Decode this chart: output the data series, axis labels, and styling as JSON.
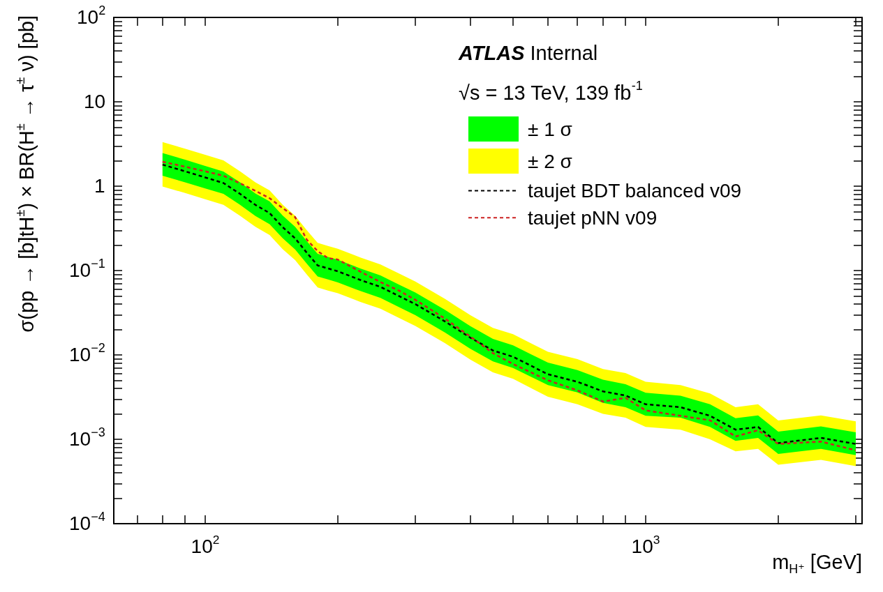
{
  "chart_data": {
    "type": "line",
    "xlabel": "m$_{H⁺}$ [GeV]",
    "ylabel": "σ(pp → [b]tH$^{±}$) × BR(H$^{±}$ → τ$^{±}$ ν) [pb]",
    "annotations": [
      "ATLAS Internal",
      "√s = 13 TeV, 139 fb$^{-1}$"
    ],
    "x": [
      80,
      90,
      100,
      110,
      120,
      130,
      140,
      150,
      160,
      170,
      180,
      190,
      200,
      225,
      250,
      275,
      300,
      350,
      400,
      450,
      500,
      600,
      700,
      800,
      900,
      1000,
      1200,
      1400,
      1600,
      1800,
      2000,
      2500,
      3000
    ],
    "series": [
      {
        "name": "± 2 σ",
        "type": "area",
        "color": "#ffff00",
        "values": [
          null,
          null,
          null,
          null,
          null,
          null,
          null,
          null,
          null,
          null,
          null,
          null,
          null,
          null,
          null,
          null,
          null,
          null,
          null,
          null,
          null,
          null,
          null,
          null,
          null,
          null,
          null,
          null,
          null,
          null,
          null,
          null,
          null
        ],
        "lower": [
          0.99,
          0.83,
          0.7,
          0.6,
          0.446,
          0.33,
          0.264,
          0.179,
          0.133,
          0.09,
          0.063,
          0.058,
          0.054,
          0.0425,
          0.0352,
          0.0275,
          0.022,
          0.0138,
          0.0088,
          0.0062,
          0.0052,
          0.0032,
          0.0026,
          0.002,
          0.0018,
          0.0014,
          0.0013,
          0.001,
          0.00072,
          0.00077,
          0.0005,
          0.00057,
          0.00048
        ],
        "upper": [
          3.33,
          2.78,
          2.35,
          2.02,
          1.5,
          1.11,
          0.89,
          0.6,
          0.446,
          0.302,
          0.213,
          0.196,
          0.181,
          0.143,
          0.118,
          0.0925,
          0.074,
          0.0463,
          0.0296,
          0.0209,
          0.0176,
          0.0109,
          0.0089,
          0.0068,
          0.0061,
          0.0048,
          0.0044,
          0.0035,
          0.0024,
          0.0026,
          0.00167,
          0.00192,
          0.00163
        ]
      },
      {
        "name": "± 1 σ",
        "type": "area",
        "color": "#00ff00",
        "values": [
          null,
          null,
          null,
          null,
          null,
          null,
          null,
          null,
          null,
          null,
          null,
          null,
          null,
          null,
          null,
          null,
          null,
          null,
          null,
          null,
          null,
          null,
          null,
          null,
          null,
          null,
          null,
          null,
          null,
          null,
          null,
          null,
          null
        ],
        "lower": [
          1.33,
          1.11,
          0.94,
          0.81,
          0.6,
          0.444,
          0.355,
          0.241,
          0.178,
          0.121,
          0.085,
          0.0784,
          0.0725,
          0.0572,
          0.0474,
          0.037,
          0.0296,
          0.0185,
          0.0118,
          0.0084,
          0.007,
          0.0044,
          0.0036,
          0.0027,
          0.0024,
          0.0019,
          0.0018,
          0.0014,
          0.00096,
          0.00104,
          0.00067,
          0.00077,
          0.00065
        ],
        "upper": [
          2.47,
          2.06,
          1.74,
          1.49,
          1.11,
          0.82,
          0.66,
          0.447,
          0.33,
          0.223,
          0.158,
          0.145,
          0.134,
          0.106,
          0.0877,
          0.0685,
          0.0548,
          0.0343,
          0.0219,
          0.0155,
          0.013,
          0.0081,
          0.0066,
          0.0051,
          0.0045,
          0.00356,
          0.00329,
          0.0026,
          0.00178,
          0.00192,
          0.00123,
          0.00142,
          0.00121
        ]
      },
      {
        "name": "taujet BDT balanced v09",
        "color": "#000000",
        "values": [
          1.8,
          1.5,
          1.27,
          1.09,
          0.81,
          0.6,
          0.48,
          0.326,
          0.241,
          0.163,
          0.115,
          0.106,
          0.098,
          0.0773,
          0.064,
          0.05,
          0.04,
          0.025,
          0.016,
          0.0113,
          0.0095,
          0.0059,
          0.0048,
          0.0037,
          0.0033,
          0.0026,
          0.0024,
          0.0019,
          0.0013,
          0.0014,
          0.0009,
          0.00104,
          0.00088
        ]
      },
      {
        "name": "taujet pNN v09",
        "color": "#cc2222",
        "values": [
          1.95,
          1.7,
          1.5,
          1.33,
          1.08,
          0.88,
          0.72,
          0.55,
          0.43,
          0.233,
          0.17,
          0.14,
          0.135,
          0.097,
          0.073,
          0.058,
          0.045,
          0.027,
          0.0165,
          0.0105,
          0.0078,
          0.005,
          0.0038,
          0.0028,
          0.0031,
          0.0022,
          0.0019,
          0.00168,
          0.00108,
          0.00128,
          0.00088,
          0.00094,
          0.00074
        ]
      }
    ],
    "log": "xy",
    "grid": false,
    "legend": "top right",
    "marker": "none",
    "line_style": "dashed",
    "xlim": [
      62,
      3100
    ],
    "xticks": [
      {
        "value": 70,
        "label": null
      },
      {
        "value": 80,
        "label": null
      },
      {
        "value": 90,
        "label": null
      },
      {
        "value": 100,
        "label": "10$^{2}$"
      },
      {
        "value": 200,
        "label": null
      },
      {
        "value": 300,
        "label": null
      },
      {
        "value": 400,
        "label": null
      },
      {
        "value": 500,
        "label": null
      },
      {
        "value": 600,
        "label": null
      },
      {
        "value": 700,
        "label": null
      },
      {
        "value": 800,
        "label": null
      },
      {
        "value": 900,
        "label": null
      },
      {
        "value": 1000,
        "label": "10$^{3}$"
      },
      {
        "value": 2000,
        "label": null
      },
      {
        "value": 3000,
        "label": null
      }
    ],
    "ylim": [
      0.0001,
      100
    ],
    "yticks": [
      {
        "value": 0.0001,
        "label": "10$^{−4}$"
      },
      {
        "value": 0.0002,
        "label": null
      },
      {
        "value": 0.0003,
        "label": null
      },
      {
        "value": 0.0004,
        "label": null
      },
      {
        "value": 0.0005,
        "label": null
      },
      {
        "value": 0.0006,
        "label": null
      },
      {
        "value": 0.0007,
        "label": null
      },
      {
        "value": 0.0008,
        "label": null
      },
      {
        "value": 0.0009,
        "label": null
      },
      {
        "value": 0.001,
        "label": "10$^{−3}$"
      },
      {
        "value": 0.002,
        "label": null
      },
      {
        "value": 0.003,
        "label": null
      },
      {
        "value": 0.004,
        "label": null
      },
      {
        "value": 0.005,
        "label": null
      },
      {
        "value": 0.006,
        "label": null
      },
      {
        "value": 0.007,
        "label": null
      },
      {
        "value": 0.008,
        "label": null
      },
      {
        "value": 0.009,
        "label": null
      },
      {
        "value": 0.01,
        "label": "10$^{−2}$"
      },
      {
        "value": 0.02,
        "label": null
      },
      {
        "value": 0.03,
        "label": null
      },
      {
        "value": 0.04,
        "label": null
      },
      {
        "value": 0.05,
        "label": null
      },
      {
        "value": 0.06,
        "label": null
      },
      {
        "value": 0.07,
        "label": null
      },
      {
        "value": 0.08,
        "label": null
      },
      {
        "value": 0.09,
        "label": null
      },
      {
        "value": 0.1,
        "label": "10$^{−1}$"
      },
      {
        "value": 0.2,
        "label": null
      },
      {
        "value": 0.3,
        "label": null
      },
      {
        "value": 0.4,
        "label": null
      },
      {
        "value": 0.5,
        "label": null
      },
      {
        "value": 0.6,
        "label": null
      },
      {
        "value": 0.7,
        "label": null
      },
      {
        "value": 0.8,
        "label": null
      },
      {
        "value": 0.9,
        "label": null
      },
      1,
      {
        "value": 2,
        "label": null
      },
      {
        "value": 3,
        "label": null
      },
      {
        "value": 4,
        "label": null
      },
      {
        "value": 5,
        "label": null
      },
      {
        "value": 6,
        "label": null
      },
      {
        "value": 7,
        "label": null
      },
      {
        "value": 8,
        "label": null
      },
      {
        "value": 9,
        "label": null
      },
      10,
      {
        "value": 20,
        "label": null
      },
      {
        "value": 30,
        "label": null
      },
      {
        "value": 40,
        "label": null
      },
      {
        "value": 50,
        "label": null
      },
      {
        "value": 60,
        "label": null
      },
      {
        "value": 70,
        "label": null
      },
      {
        "value": 80,
        "label": null
      },
      {
        "value": 90,
        "label": null
      },
      {
        "value": 100,
        "label": "10$^{2}$"
      }
    ]
  }
}
